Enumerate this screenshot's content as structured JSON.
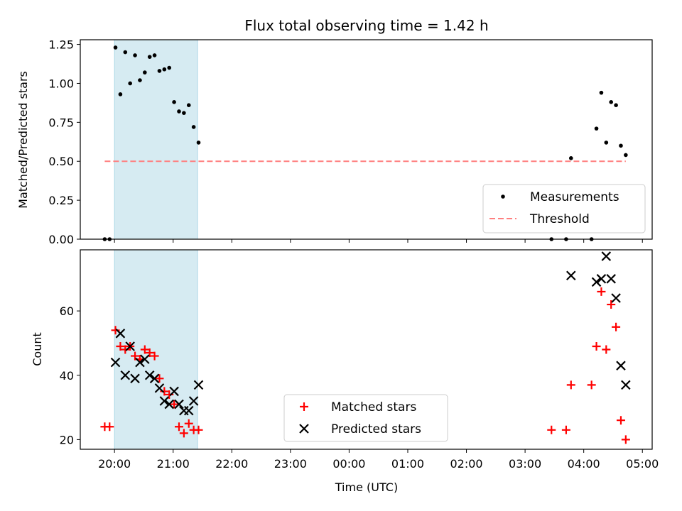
{
  "chart_data": [
    {
      "type": "scatter",
      "title": "Flux total observing time = 1.42 h",
      "ylabel": "Matched/Predicted stars",
      "xlim": [
        "19:25",
        "05:10"
      ],
      "ylim": [
        0,
        1.28
      ],
      "y_ticks": [
        "0.00",
        "0.25",
        "0.50",
        "0.75",
        "1.00",
        "1.25"
      ],
      "x_ticks": [
        "20:00",
        "21:00",
        "22:00",
        "23:00",
        "00:00",
        "01:00",
        "02:00",
        "03:00",
        "04:00",
        "05:00"
      ],
      "shaded_span": [
        "20:00",
        "21:25"
      ],
      "legend_placement": "lower right",
      "series": [
        {
          "name": "Measurements",
          "color": "#000000",
          "points": [
            [
              "19:50",
              0.0
            ],
            [
              "19:55",
              0.0
            ],
            [
              "20:01",
              1.23
            ],
            [
              "20:06",
              0.93
            ],
            [
              "20:11",
              1.2
            ],
            [
              "20:16",
              1.0
            ],
            [
              "20:21",
              1.18
            ],
            [
              "20:26",
              1.02
            ],
            [
              "20:31",
              1.07
            ],
            [
              "20:36",
              1.17
            ],
            [
              "20:41",
              1.18
            ],
            [
              "20:46",
              1.08
            ],
            [
              "20:51",
              1.09
            ],
            [
              "20:56",
              1.1
            ],
            [
              "21:01",
              0.88
            ],
            [
              "21:06",
              0.82
            ],
            [
              "21:11",
              0.81
            ],
            [
              "21:16",
              0.86
            ],
            [
              "21:21",
              0.72
            ],
            [
              "21:26",
              0.62
            ],
            [
              "03:27",
              0.0
            ],
            [
              "03:42",
              0.0
            ],
            [
              "03:47",
              0.52
            ],
            [
              "04:08",
              0.0
            ],
            [
              "04:13",
              0.71
            ],
            [
              "04:18",
              0.94
            ],
            [
              "04:23",
              0.62
            ],
            [
              "04:28",
              0.88
            ],
            [
              "04:33",
              0.86
            ],
            [
              "04:38",
              0.6
            ],
            [
              "04:43",
              0.54
            ]
          ]
        },
        {
          "name": "Threshold",
          "color": "#ff7f7f",
          "style": "dashed",
          "points": [
            [
              "19:50",
              0.5
            ],
            [
              "04:43",
              0.5
            ]
          ]
        }
      ]
    },
    {
      "type": "scatter",
      "xlabel": "Time (UTC)",
      "ylabel": "Count",
      "xlim": [
        "19:25",
        "05:10"
      ],
      "ylim": [
        17,
        79
      ],
      "y_ticks": [
        "20",
        "40",
        "60"
      ],
      "x_ticks": [
        "20:00",
        "21:00",
        "22:00",
        "23:00",
        "00:00",
        "01:00",
        "02:00",
        "03:00",
        "04:00",
        "05:00"
      ],
      "shaded_span": [
        "20:00",
        "21:25"
      ],
      "legend_placement": "lower center",
      "series": [
        {
          "name": "Matched stars",
          "color": "#ff0000",
          "marker": "plus",
          "points": [
            [
              "19:50",
              24
            ],
            [
              "19:55",
              24
            ],
            [
              "20:01",
              54
            ],
            [
              "20:06",
              49
            ],
            [
              "20:11",
              48
            ],
            [
              "20:16",
              49
            ],
            [
              "20:21",
              46
            ],
            [
              "20:26",
              45
            ],
            [
              "20:31",
              48
            ],
            [
              "20:36",
              47
            ],
            [
              "20:41",
              46
            ],
            [
              "20:46",
              39
            ],
            [
              "20:51",
              35
            ],
            [
              "20:56",
              34
            ],
            [
              "21:01",
              31
            ],
            [
              "21:06",
              24
            ],
            [
              "21:11",
              22
            ],
            [
              "21:16",
              25
            ],
            [
              "21:21",
              23
            ],
            [
              "21:26",
              23
            ],
            [
              "03:27",
              23
            ],
            [
              "03:42",
              23
            ],
            [
              "03:47",
              37
            ],
            [
              "04:08",
              37
            ],
            [
              "04:13",
              49
            ],
            [
              "04:18",
              66
            ],
            [
              "04:23",
              48
            ],
            [
              "04:28",
              62
            ],
            [
              "04:33",
              55
            ],
            [
              "04:38",
              26
            ],
            [
              "04:43",
              20
            ]
          ]
        },
        {
          "name": "Predicted stars",
          "color": "#000000",
          "marker": "x",
          "points": [
            [
              "20:01",
              44
            ],
            [
              "20:06",
              53
            ],
            [
              "20:11",
              40
            ],
            [
              "20:16",
              49
            ],
            [
              "20:21",
              39
            ],
            [
              "20:26",
              44
            ],
            [
              "20:31",
              45
            ],
            [
              "20:36",
              40
            ],
            [
              "20:41",
              39
            ],
            [
              "20:46",
              36
            ],
            [
              "20:51",
              32
            ],
            [
              "20:56",
              31
            ],
            [
              "21:01",
              35
            ],
            [
              "21:06",
              31
            ],
            [
              "21:11",
              29
            ],
            [
              "21:16",
              29
            ],
            [
              "21:21",
              32
            ],
            [
              "21:26",
              37
            ],
            [
              "03:47",
              71
            ],
            [
              "04:13",
              69
            ],
            [
              "04:18",
              70
            ],
            [
              "04:23",
              77
            ],
            [
              "04:28",
              70
            ],
            [
              "04:33",
              64
            ],
            [
              "04:38",
              43
            ],
            [
              "04:43",
              37
            ]
          ]
        }
      ]
    }
  ]
}
